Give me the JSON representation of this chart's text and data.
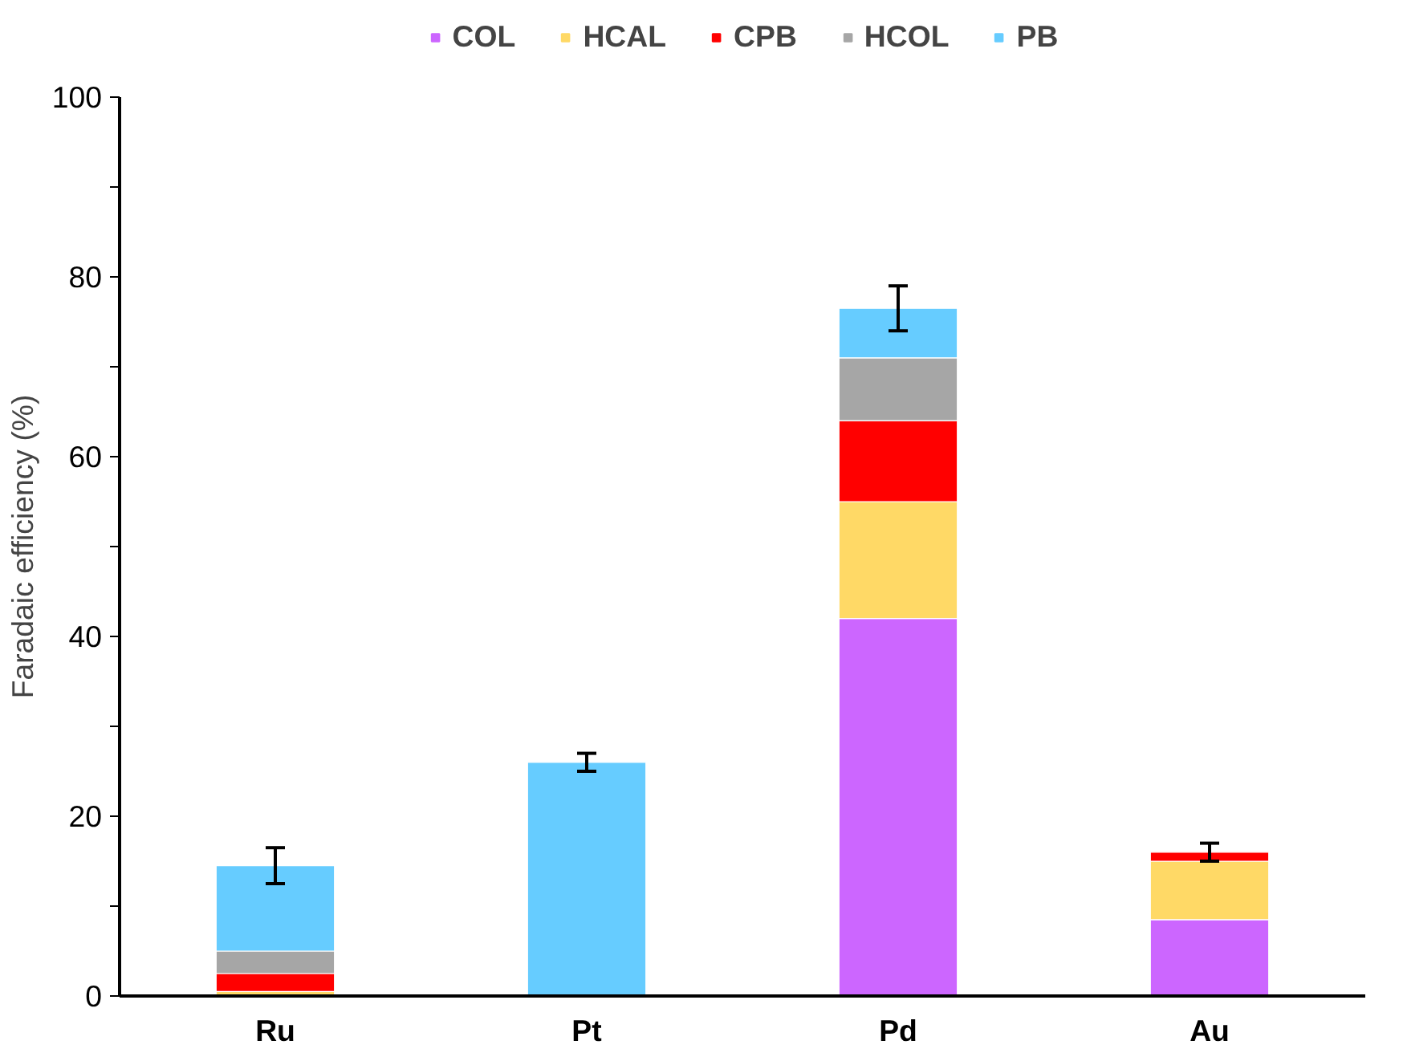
{
  "chart_data": {
    "type": "bar",
    "stacked": true,
    "ylabel": "Faradaic efficiency (%)",
    "categories": [
      "Ru",
      "Pt",
      "Pd",
      "Au"
    ],
    "series": [
      {
        "name": "COL",
        "color": "#cc66ff",
        "values": [
          null,
          null,
          42,
          8.5
        ]
      },
      {
        "name": "HCAL",
        "color": "#ffd966",
        "values": [
          0.5,
          null,
          13,
          6.5
        ]
      },
      {
        "name": "CPB",
        "color": "#ff0000",
        "values": [
          2,
          null,
          9,
          1
        ],
        "errors": [
          null,
          null,
          null,
          1
        ]
      },
      {
        "name": "HCOL",
        "color": "#a6a6a6",
        "values": [
          2.5,
          null,
          7,
          null
        ]
      },
      {
        "name": "PB",
        "color": "#66ccff",
        "values": [
          9.5,
          26,
          5.5,
          null
        ],
        "errors": [
          2,
          1,
          2.5,
          null
        ]
      }
    ],
    "ylim": [
      0,
      100
    ],
    "yticks": [
      0,
      {
        "value": 10,
        "label": null
      },
      20,
      {
        "value": 30,
        "label": null
      },
      40,
      {
        "value": 50,
        "label": null
      },
      60,
      {
        "value": 70,
        "label": null
      },
      80,
      {
        "value": 90,
        "label": null
      },
      100
    ],
    "legend": "top",
    "grid": false
  }
}
